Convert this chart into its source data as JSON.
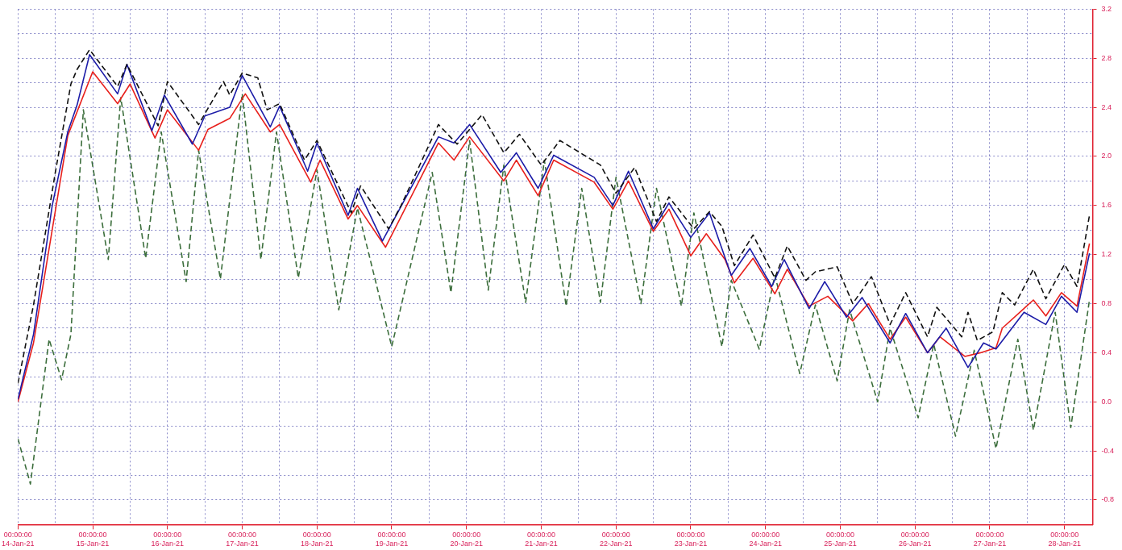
{
  "chart_data": {
    "type": "line",
    "grid": true,
    "legend": false,
    "marker": "none",
    "xlim": [
      "--01-14",
      "--01-28T09:00"
    ],
    "xticks": [
      {
        "value": "--01-14",
        "label": "00:00:00\n14-Jan-21"
      },
      {
        "value": "--01-14T12:00",
        "label": null
      },
      {
        "value": "--01-15",
        "label": "00:00:00\n15-Jan-21"
      },
      {
        "value": "--01-15T12:00",
        "label": null
      },
      {
        "value": "--01-16",
        "label": "00:00:00\n16-Jan-21"
      },
      {
        "value": "--01-16T12:00",
        "label": null
      },
      {
        "value": "--01-17",
        "label": "00:00:00\n17-Jan-21"
      },
      {
        "value": "--01-17T12:00",
        "label": null
      },
      {
        "value": "--01-18",
        "label": "00:00:00\n18-Jan-21"
      },
      {
        "value": "--01-18T12:00",
        "label": null
      },
      {
        "value": "--01-19",
        "label": "00:00:00\n19-Jan-21"
      },
      {
        "value": "--01-19T12:00",
        "label": null
      },
      {
        "value": "--01-20",
        "label": "00:00:00\n20-Jan-21"
      },
      {
        "value": "--01-20T12:00",
        "label": null
      },
      {
        "value": "--01-21",
        "label": "00:00:00\n21-Jan-21"
      },
      {
        "value": "--01-21T12:00",
        "label": null
      },
      {
        "value": "--01-22",
        "label": "00:00:00\n22-Jan-21"
      },
      {
        "value": "--01-22T12:00",
        "label": null
      },
      {
        "value": "--01-23",
        "label": "00:00:00\n23-Jan-21"
      },
      {
        "value": "--01-23T12:00",
        "label": null
      },
      {
        "value": "--01-24",
        "label": "00:00:00\n24-Jan-21"
      },
      {
        "value": "--01-24T12:00",
        "label": null
      },
      {
        "value": "--01-25",
        "label": "00:00:00\n25-Jan-21"
      },
      {
        "value": "--01-25T12:00",
        "label": null
      },
      {
        "value": "--01-26",
        "label": "00:00:00\n26-Jan-21"
      },
      {
        "value": "--01-26T12:00",
        "label": null
      },
      {
        "value": "--01-27",
        "label": "00:00:00\n27-Jan-21"
      },
      {
        "value": "--01-27T12:00",
        "label": null
      },
      {
        "value": "--01-28",
        "label": "00:00:00\n28-Jan-21"
      }
    ],
    "y2lim": [
      -1,
      3.2
    ],
    "y2ticks": [
      -0.8,
      {
        "value": -0.6,
        "label": null
      },
      -0.4,
      {
        "value": -0.2,
        "label": null
      },
      {
        "value": 0,
        "label": "0.0"
      },
      {
        "value": 0.2,
        "label": null
      },
      0.4,
      {
        "value": 0.6,
        "label": null
      },
      0.8,
      {
        "value": 1,
        "label": null
      },
      1.2,
      {
        "value": 1.4,
        "label": null
      },
      1.6,
      {
        "value": 1.8,
        "label": null
      },
      {
        "value": 2,
        "label": "2.0"
      },
      {
        "value": 2.2,
        "label": null
      },
      2.4,
      {
        "value": 2.6,
        "label": null
      },
      2.8,
      {
        "value": 3,
        "label": null
      },
      3.2
    ],
    "series": [
      {
        "color": "#111111",
        "axis": "y2",
        "line_style": "dashed",
        "x": [
          "--01-14T00:00",
          "--01-14T05:00",
          "--01-14T12:00",
          "--01-14T17:00",
          "--01-14T19:00",
          "--01-14T23:00",
          "--01-15T08:00",
          "--01-15T11:00",
          "--01-15T21:00",
          "--01-16T00:00",
          "--01-16T10:00",
          "--01-16T18:00",
          "--01-16T20:00",
          "--01-17T00:00",
          "--01-17T05:00",
          "--01-17T08:00",
          "--01-17T12:00",
          "--01-17T20:00",
          "--01-18T00:00",
          "--01-18T11:00",
          "--01-18T14:00",
          "--01-18T23:00",
          "--01-19T03:00",
          "--01-19T15:00",
          "--01-19T21:00",
          "--01-20T05:00",
          "--01-20T12:00",
          "--01-20T17:00",
          "--01-21T00:00",
          "--01-21T06:00",
          "--01-21T19:00",
          "--01-22T00:00",
          "--01-22T06:00",
          "--01-22T13:00",
          "--01-22T17:00",
          "--01-23T01:00",
          "--01-23T06:00",
          "--01-23T10:00",
          "--01-23T14:00",
          "--01-23T20:00",
          "--01-24T03:00",
          "--01-24T07:00",
          "--01-24T13:00",
          "--01-24T16:00",
          "--01-24T23:00",
          "--01-25T04:00",
          "--01-25T10:00",
          "--01-25T16:00",
          "--01-25T21:00",
          "--01-26T04:00",
          "--01-26T07:00",
          "--01-26T15:00",
          "--01-26T17:00",
          "--01-26T20:00",
          "--01-27T01:00",
          "--01-27T04:00",
          "--01-27T08:00",
          "--01-27T14:00",
          "--01-27T18:00",
          "--01-28T00:00",
          "--01-28T04:00",
          "--01-28T08:00"
        ],
        "values": [
          0.15,
          0.79,
          1.87,
          2.59,
          2.71,
          2.87,
          2.57,
          2.75,
          2.25,
          2.61,
          2.26,
          2.61,
          2.5,
          2.68,
          2.64,
          2.38,
          2.43,
          1.97,
          2.13,
          1.54,
          1.76,
          1.41,
          1.6,
          2.26,
          2.1,
          2.34,
          2.03,
          2.18,
          1.93,
          2.13,
          1.93,
          1.7,
          1.91,
          1.47,
          1.67,
          1.41,
          1.55,
          1.43,
          1.11,
          1.36,
          1.01,
          1.27,
          0.99,
          1.06,
          1.1,
          0.8,
          1.02,
          0.63,
          0.89,
          0.53,
          0.77,
          0.53,
          0.73,
          0.5,
          0.57,
          0.89,
          0.79,
          1.08,
          0.84,
          1.12,
          0.94,
          1.52
        ]
      },
      {
        "color": "#1c1ca8",
        "axis": "y2",
        "line_style": "solid",
        "x": [
          "--01-14T00:00",
          "--01-14T05:00",
          "--01-14T11:00",
          "--01-14T16:00",
          "--01-14T19:00",
          "--01-14T23:00",
          "--01-15T08:00",
          "--01-15T11:00",
          "--01-15T19:00",
          "--01-15T23:00",
          "--01-16T08:00",
          "--01-16T12:00",
          "--01-16T20:00",
          "--01-17T00:00",
          "--01-17T09:00",
          "--01-17T12:00",
          "--01-17T21:00",
          "--01-18T00:00",
          "--01-18T10:00",
          "--01-18T13:00",
          "--01-18T21:00",
          "--01-19T15:00",
          "--01-19T20:00",
          "--01-20T01:00",
          "--01-20T11:00",
          "--01-20T16:00",
          "--01-20T23:00",
          "--01-21T04:00",
          "--01-21T17:00",
          "--01-21T23:00",
          "--01-22T04:00",
          "--01-22T12:00",
          "--01-22T17:00",
          "--01-23T00:00",
          "--01-23T06:00",
          "--01-23T13:00",
          "--01-23T19:00",
          "--01-24T02:00",
          "--01-24T06:00",
          "--01-24T14:00",
          "--01-24T19:00",
          "--01-25T02:00",
          "--01-25T07:00",
          "--01-25T16:00",
          "--01-25T21:00",
          "--01-26T04:00",
          "--01-26T10:00",
          "--01-26T17:00",
          "--01-26T22:00",
          "--01-27T02:00",
          "--01-27T11:00",
          "--01-27T18:00",
          "--01-27T23:00",
          "--01-28T04:00",
          "--01-28T08:00"
        ],
        "values": [
          0.02,
          0.55,
          1.6,
          2.2,
          2.42,
          2.83,
          2.51,
          2.75,
          2.21,
          2.5,
          2.1,
          2.33,
          2.4,
          2.66,
          2.24,
          2.41,
          1.88,
          2.11,
          1.52,
          1.74,
          1.31,
          2.16,
          2.11,
          2.26,
          1.87,
          2.03,
          1.74,
          2.01,
          1.83,
          1.6,
          1.88,
          1.41,
          1.62,
          1.34,
          1.54,
          1.03,
          1.25,
          0.94,
          1.16,
          0.76,
          0.98,
          0.69,
          0.85,
          0.48,
          0.72,
          0.4,
          0.6,
          0.28,
          0.48,
          0.43,
          0.73,
          0.63,
          0.86,
          0.73,
          1.21
        ]
      },
      {
        "color": "#e8201c",
        "axis": "y2",
        "line_style": "solid",
        "x": [
          "--01-14T00:00",
          "--01-14T05:00",
          "--01-14T16:00",
          "--01-15T00:00",
          "--01-15T08:00",
          "--01-15T12:00",
          "--01-15T20:00",
          "--01-16T00:00",
          "--01-16T10:00",
          "--01-16T13:00",
          "--01-16T20:00",
          "--01-17T01:00",
          "--01-17T09:00",
          "--01-17T12:00",
          "--01-17T22:00",
          "--01-18T01:00",
          "--01-18T10:00",
          "--01-18T13:00",
          "--01-18T22:00",
          "--01-19T15:00",
          "--01-19T20:00",
          "--01-20T01:00",
          "--01-20T12:00",
          "--01-20T16:00",
          "--01-20T23:00",
          "--01-21T04:00",
          "--01-21T17:00",
          "--01-21T23:00",
          "--01-22T04:00",
          "--01-22T12:00",
          "--01-22T17:00",
          "--01-23T00:00",
          "--01-23T05:00",
          "--01-23T11:00",
          "--01-23T14:00",
          "--01-23T20:00",
          "--01-24T03:00",
          "--01-24T07:00",
          "--01-24T14:00",
          "--01-24T20:00",
          "--01-25T04:00",
          "--01-25T09:00",
          "--01-25T16:00",
          "--01-25T21:00",
          "--01-26T04:00",
          "--01-26T08:00",
          "--01-26T16:00",
          "--01-26T21:00",
          "--01-27T02:00",
          "--01-27T04:00",
          "--01-27T14:00",
          "--01-27T18:00",
          "--01-27T23:00",
          "--01-28T04:00",
          "--01-28T08:00"
        ],
        "values": [
          0,
          0.48,
          2.17,
          2.69,
          2.43,
          2.59,
          2.15,
          2.38,
          2.05,
          2.22,
          2.31,
          2.51,
          2.2,
          2.26,
          1.79,
          1.97,
          1.49,
          1.6,
          1.26,
          2.11,
          1.97,
          2.16,
          1.8,
          1.97,
          1.68,
          1.97,
          1.79,
          1.57,
          1.8,
          1.39,
          1.57,
          1.19,
          1.37,
          1.16,
          0.97,
          1.17,
          0.88,
          1.08,
          0.78,
          0.86,
          0.66,
          0.8,
          0.51,
          0.69,
          0.4,
          0.53,
          0.37,
          0.4,
          0.44,
          0.6,
          0.83,
          0.7,
          0.89,
          0.78,
          1.29
        ]
      },
      {
        "color": "#3c6e3c",
        "axis": "y2",
        "line_style": "dashed",
        "x": [
          "--01-14T00:00",
          "--01-14T04:00",
          "--01-14T10:00",
          "--01-14T14:00",
          "--01-14T17:00",
          "--01-14T21:00",
          "--01-15T05:00",
          "--01-15T09:00",
          "--01-15T17:00",
          "--01-15T22:00",
          "--01-16T06:00",
          "--01-16T10:00",
          "--01-16T17:00",
          "--01-17T00:00",
          "--01-17T06:00",
          "--01-17T11:00",
          "--01-17T18:00",
          "--01-18T00:00",
          "--01-18T07:00",
          "--01-18T13:00",
          "--01-19T00:00",
          "--01-19T13:00",
          "--01-19T19:00",
          "--01-20T01:00",
          "--01-20T07:00",
          "--01-20T12:00",
          "--01-20T19:00",
          "--01-21T01:00",
          "--01-21T08:00",
          "--01-21T13:00",
          "--01-21T19:00",
          "--01-22T00:00",
          "--01-22T08:00",
          "--01-22T13:00",
          "--01-22T21:00",
          "--01-23T01:00",
          "--01-23T10:00",
          "--01-23T13:00",
          "--01-23T22:00",
          "--01-24T03:00",
          "--01-24T11:00",
          "--01-24T16:00",
          "--01-24T23:00",
          "--01-25T03:00",
          "--01-25T12:00",
          "--01-25T16:00",
          "--01-26T01:00",
          "--01-26T06:00",
          "--01-26T13:00",
          "--01-26T19:00",
          "--01-27T02:00",
          "--01-27T09:00",
          "--01-27T14:00",
          "--01-27T21:00",
          "--01-28T02:00",
          "--01-28T08:00"
        ],
        "values": [
          -0.3,
          -0.67,
          0.51,
          0.18,
          0.55,
          2.38,
          1.16,
          2.48,
          1.17,
          2.2,
          0.98,
          2.05,
          1,
          2.51,
          1.16,
          2.2,
          1.01,
          1.89,
          0.75,
          1.58,
          0.45,
          1.87,
          0.89,
          2.13,
          0.91,
          1.93,
          0.81,
          1.97,
          0.78,
          1.74,
          0.81,
          1.83,
          0.8,
          1.74,
          0.78,
          1.54,
          0.45,
          0.99,
          0.43,
          1.03,
          0.23,
          0.79,
          0.17,
          0.75,
          0,
          0.6,
          -0.13,
          0.47,
          -0.28,
          0.42,
          -0.38,
          0.51,
          -0.23,
          0.73,
          -0.21,
          0.83
        ]
      }
    ]
  }
}
